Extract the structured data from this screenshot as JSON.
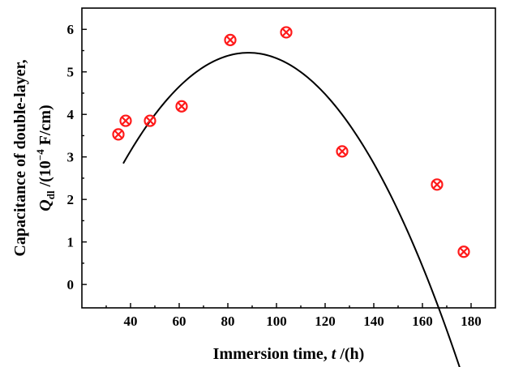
{
  "chart_data": {
    "type": "scatter",
    "xlabel": {
      "prefix": "Immersion time, ",
      "symbol": "t",
      "suffix": " /(h)"
    },
    "ylabel": {
      "line1": "Capacitance of double-layer,",
      "symbol": "Q",
      "subscript": "dl",
      "unit_prefix": " /(10",
      "superscript": "−4",
      "unit_suffix": " F/cm)"
    },
    "xlim": [
      20,
      190
    ],
    "ylim": [
      -0.55,
      6.5
    ],
    "xticks": [
      40,
      60,
      80,
      100,
      120,
      140,
      160,
      180
    ],
    "yticks": [
      0,
      1,
      2,
      3,
      4,
      5,
      6
    ],
    "grid": false,
    "legend": "none",
    "series": [
      {
        "marker": "circled-x",
        "color": "#ff1a1a",
        "points": [
          {
            "x": 35,
            "y": 3.53
          },
          {
            "x": 38,
            "y": 3.85
          },
          {
            "x": 48,
            "y": 3.85
          },
          {
            "x": 61,
            "y": 4.19
          },
          {
            "x": 81,
            "y": 5.75
          },
          {
            "x": 104,
            "y": 5.93
          },
          {
            "x": 127,
            "y": 3.13
          },
          {
            "x": 166,
            "y": 2.35
          },
          {
            "x": 177,
            "y": 0.77
          }
        ]
      }
    ],
    "fit_curve": {
      "type": "quadratic",
      "color": "#000000",
      "x_range": [
        37,
        177
      ],
      "coefficients": {
        "a": -0.000982,
        "x0": 88.5,
        "b": 5.45
      }
    }
  }
}
